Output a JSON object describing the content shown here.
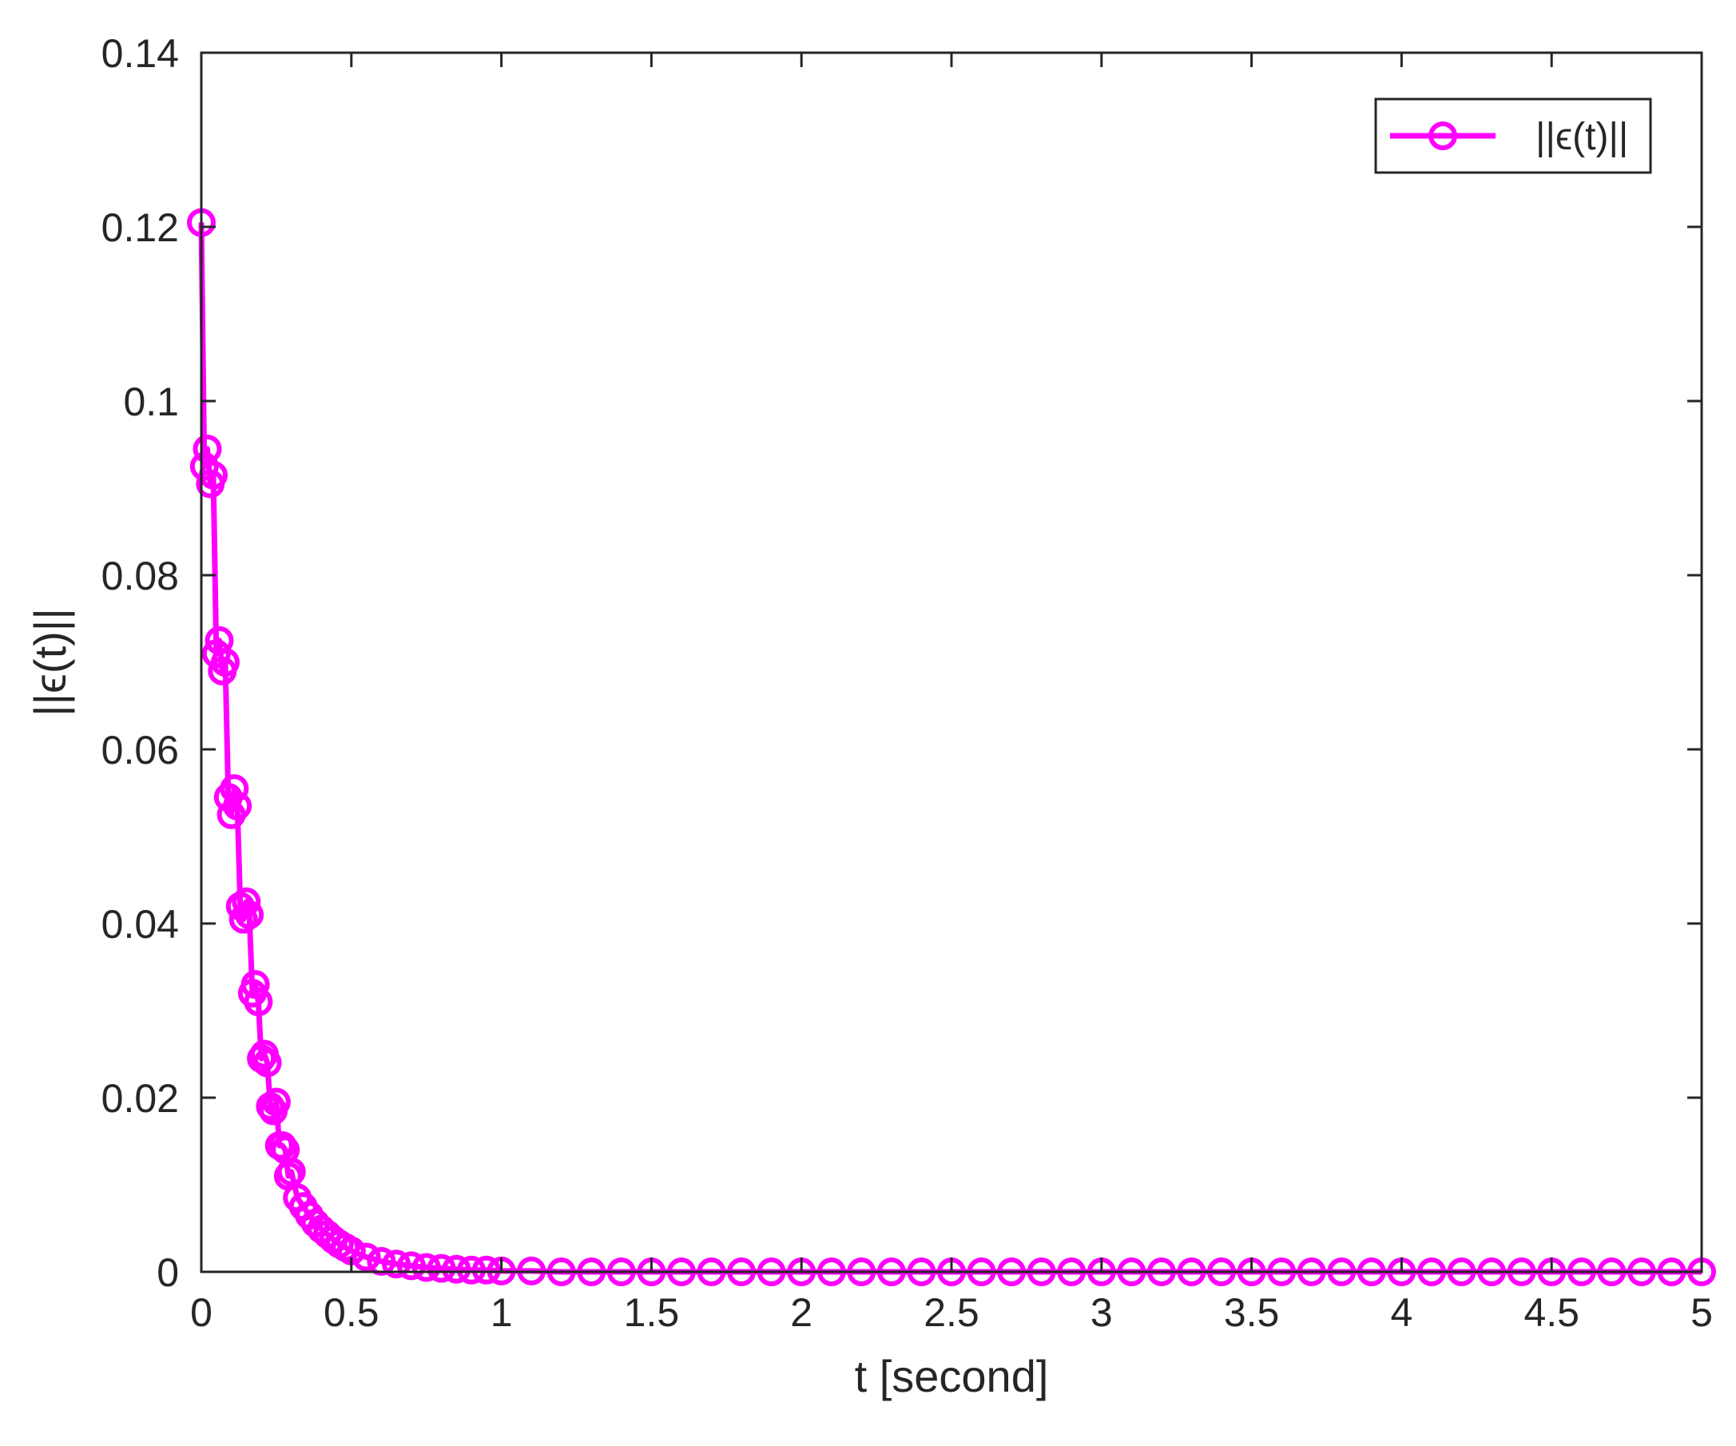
{
  "chart_data": {
    "type": "line",
    "xlabel": "t  [second]",
    "ylabel": "||ϵ(t)||",
    "xlim": [
      0,
      5
    ],
    "ylim": [
      0,
      0.14
    ],
    "x_ticks": [
      "0",
      "0.5",
      "1",
      "1.5",
      "2",
      "2.5",
      "3",
      "3.5",
      "4",
      "4.5",
      "5"
    ],
    "y_ticks": [
      "0",
      "0.02",
      "0.04",
      "0.06",
      "0.08",
      "0.1",
      "0.12",
      "0.14"
    ],
    "grid": false,
    "legend": {
      "position": "top-right",
      "entries": [
        "||ϵ(t)||"
      ]
    },
    "series": [
      {
        "name": "||ϵ(t)||",
        "color": "#ff00ff",
        "marker": "circle-open",
        "x": [
          0.0,
          0.01,
          0.02,
          0.03,
          0.04,
          0.05,
          0.06,
          0.07,
          0.08,
          0.09,
          0.1,
          0.11,
          0.12,
          0.13,
          0.14,
          0.15,
          0.16,
          0.17,
          0.18,
          0.19,
          0.2,
          0.21,
          0.22,
          0.23,
          0.24,
          0.25,
          0.26,
          0.27,
          0.28,
          0.29,
          0.3,
          0.32,
          0.34,
          0.36,
          0.38,
          0.4,
          0.42,
          0.44,
          0.46,
          0.48,
          0.5,
          0.55,
          0.6,
          0.65,
          0.7,
          0.75,
          0.8,
          0.85,
          0.9,
          0.95,
          1.0,
          1.1,
          1.2,
          1.3,
          1.4,
          1.5,
          1.6,
          1.7,
          1.8,
          1.9,
          2.0,
          2.1,
          2.2,
          2.3,
          2.4,
          2.5,
          2.6,
          2.7,
          2.8,
          2.9,
          3.0,
          3.1,
          3.2,
          3.3,
          3.4,
          3.5,
          3.6,
          3.7,
          3.8,
          3.9,
          4.0,
          4.1,
          4.2,
          4.3,
          4.4,
          4.5,
          4.6,
          4.7,
          4.8,
          4.9,
          5.0
        ],
        "values": [
          0.1205,
          0.0925,
          0.0945,
          0.0905,
          0.0915,
          0.071,
          0.0725,
          0.069,
          0.07,
          0.0545,
          0.0525,
          0.0555,
          0.0535,
          0.042,
          0.0405,
          0.0425,
          0.041,
          0.032,
          0.033,
          0.031,
          0.0245,
          0.025,
          0.024,
          0.019,
          0.0185,
          0.0195,
          0.0145,
          0.0145,
          0.014,
          0.011,
          0.0115,
          0.0085,
          0.0075,
          0.0065,
          0.0056,
          0.0049,
          0.0043,
          0.0037,
          0.0032,
          0.0028,
          0.0024,
          0.0017,
          0.0012,
          0.0009,
          0.0007,
          0.0005,
          0.0004,
          0.0003,
          0.0002,
          0.0002,
          0.0001,
          0.0001,
          0.0,
          0.0,
          0.0,
          0.0,
          0.0,
          0.0,
          0.0,
          0.0,
          0.0,
          0.0,
          0.0,
          0.0,
          0.0,
          0.0,
          0.0,
          0.0,
          0.0,
          0.0,
          0.0,
          0.0,
          0.0,
          0.0,
          0.0,
          0.0,
          0.0,
          0.0,
          0.0,
          0.0,
          0.0,
          0.0,
          0.0,
          0.0,
          0.0,
          0.0,
          0.0,
          0.0,
          0.0,
          0.0,
          0.0
        ]
      }
    ]
  }
}
